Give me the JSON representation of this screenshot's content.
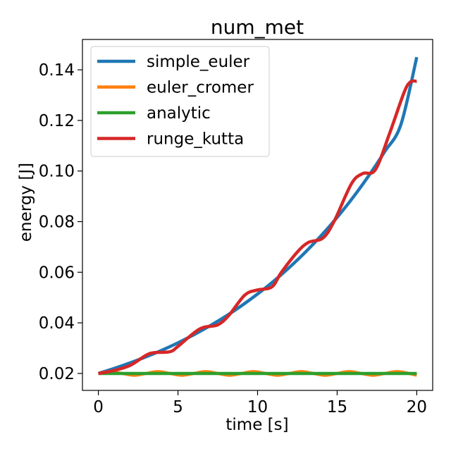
{
  "chart_data": {
    "type": "line",
    "title": "num_met",
    "xlabel": "time [s]",
    "ylabel": "energy [J]",
    "xlim": [
      -1,
      21
    ],
    "ylim": [
      0.0133,
      0.152
    ],
    "xticks": [
      0,
      5,
      10,
      15,
      20
    ],
    "xtick_labels": [
      "0",
      "5",
      "10",
      "15",
      "20"
    ],
    "yticks": [
      0.02,
      0.04,
      0.06,
      0.08,
      0.1,
      0.12,
      0.14
    ],
    "ytick_labels": [
      "0.02",
      "0.04",
      "0.06",
      "0.08",
      "0.10",
      "0.12",
      "0.14"
    ],
    "grid": false,
    "legend_position": "top-left",
    "series": [
      {
        "name": "simple_euler",
        "color": "#1f77b4",
        "x": [
          0,
          1,
          2,
          3,
          4,
          5,
          6,
          7,
          8,
          9,
          10,
          11,
          12,
          13,
          14,
          15,
          16,
          17,
          18,
          19,
          20
        ],
        "y": [
          0.02,
          0.022,
          0.0242,
          0.0266,
          0.0292,
          0.0321,
          0.0353,
          0.0388,
          0.0426,
          0.0468,
          0.0514,
          0.0564,
          0.0619,
          0.0679,
          0.0745,
          0.0817,
          0.0896,
          0.0983,
          0.1078,
          0.1183,
          0.145
        ]
      },
      {
        "name": "euler_cromer",
        "color": "#ff7f0e",
        "x": [
          0,
          0.75,
          1.5,
          2.25,
          3.0,
          3.75,
          4.5,
          5.25,
          6.0,
          6.75,
          7.5,
          8.25,
          9.0,
          9.75,
          10.5,
          11.25,
          12.0,
          12.75,
          13.5,
          14.25,
          15.0,
          15.75,
          16.5,
          17.25,
          18.0,
          18.75,
          19.5,
          20.0
        ],
        "y": [
          0.02,
          0.0207,
          0.02,
          0.0193,
          0.02,
          0.0207,
          0.02,
          0.0193,
          0.02,
          0.0207,
          0.02,
          0.0193,
          0.02,
          0.0207,
          0.02,
          0.0193,
          0.02,
          0.0207,
          0.02,
          0.0193,
          0.02,
          0.0207,
          0.02,
          0.0193,
          0.02,
          0.0207,
          0.02,
          0.0193
        ]
      },
      {
        "name": "analytic",
        "color": "#2ca02c",
        "x": [
          0,
          20
        ],
        "y": [
          0.02,
          0.02
        ]
      },
      {
        "name": "runge_kutta",
        "color": "#d62728",
        "x": [
          0,
          1,
          2,
          3,
          3.5,
          4.5,
          5,
          6,
          6.6,
          7.5,
          8.2,
          9.2,
          10,
          10.9,
          11.5,
          12.5,
          13.2,
          14.1,
          14.8,
          15.9,
          16.6,
          17.4,
          18.3,
          19.2,
          19.6,
          20
        ],
        "y": [
          0.02,
          0.0212,
          0.0232,
          0.0272,
          0.0282,
          0.0286,
          0.0307,
          0.036,
          0.0382,
          0.0392,
          0.043,
          0.051,
          0.053,
          0.0542,
          0.06,
          0.068,
          0.0718,
          0.0735,
          0.08,
          0.095,
          0.099,
          0.1005,
          0.115,
          0.131,
          0.1352,
          0.1355
        ]
      }
    ]
  }
}
